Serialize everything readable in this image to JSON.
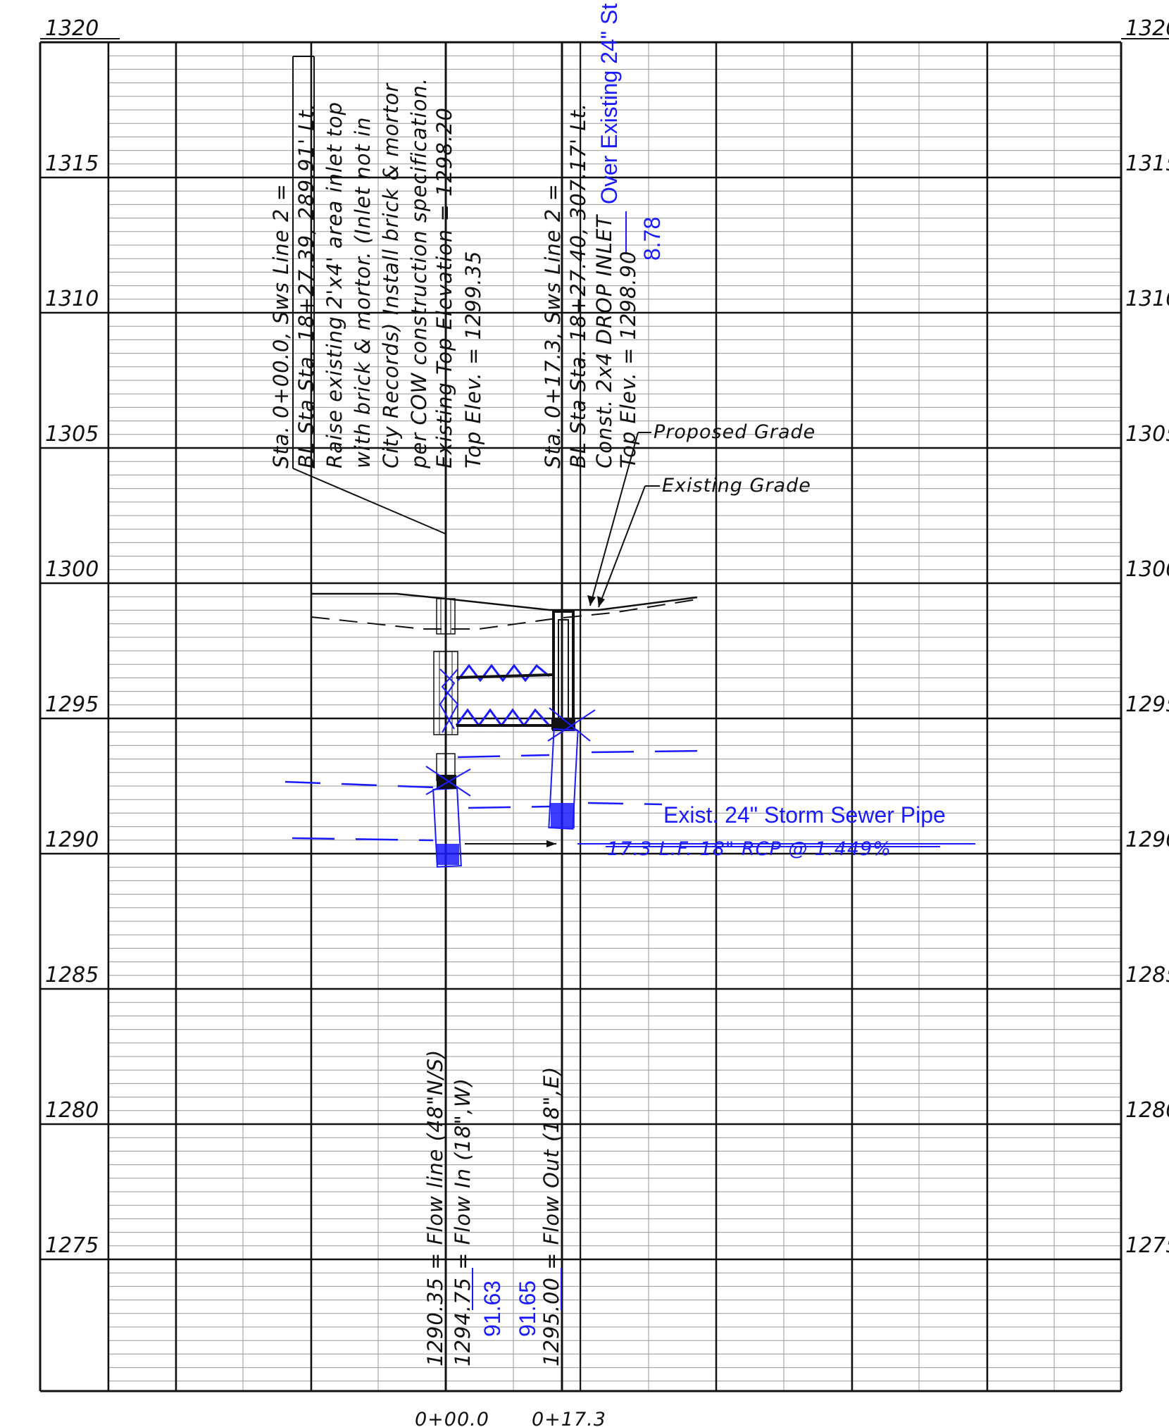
{
  "elevation_labels": [
    "1320",
    "1315",
    "1310",
    "1305",
    "1300",
    "1295",
    "1290",
    "1285",
    "1280",
    "1275"
  ],
  "station_labels": [
    "0+00.0",
    "0+17.3"
  ],
  "structure_1": {
    "lines": [
      "Sta. 0+00.0, Sws Line 2 =",
      "BL Sta Sta. 18+27.39, 289.91' Lt.",
      "Raise existing 2'x4' area inlet top",
      "with brick & mortor. (Inlet not in",
      "City Records) Install brick & mortor",
      "per COW construction specification.",
      "Existing Top Elevation = 1298.20",
      "Top Elev. = 1299.35"
    ],
    "flow": {
      "line_1": "1290.35 = Flow line (48\"N/S)",
      "line_2": "1294.75 = Flow In (18\",W)",
      "revised": "91.63"
    }
  },
  "structure_2": {
    "lines": [
      "Sta. 0+17.3, Sws Line 2 =",
      "BL Sta Sta. 18+27.40, 307.17' Lt.",
      "Const. 2x4 DROP INLET",
      "Top Elev. = 1298.90"
    ],
    "revised_top": "8.78",
    "over_note": "Over Existing 24\" St",
    "flow": {
      "line_1": "1295.00 = Flow Out (18\",E)",
      "revised": "91.65"
    }
  },
  "callouts": {
    "proposed_grade": "Proposed Grade",
    "existing_grade": "Existing Grade",
    "storm_pipe": "Exist. 24\" Storm Sewer Pipe",
    "pipe_label": "17.3 L.F. 18\" RCP @ 1.449%"
  },
  "colors": {
    "ink": "#111111",
    "revision_blue": "#1a1aff",
    "minor_grid": "#9a9a9a"
  }
}
